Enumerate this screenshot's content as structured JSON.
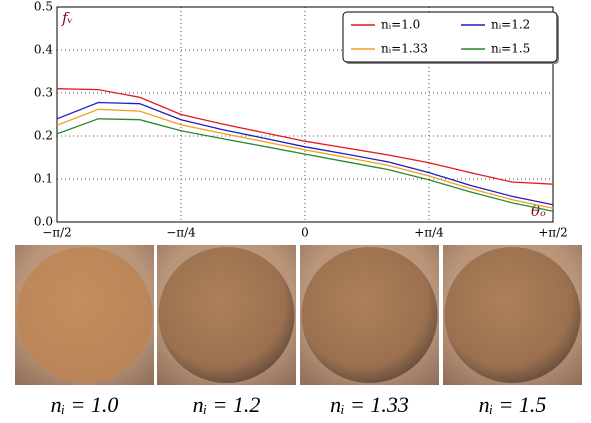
{
  "chart_data": {
    "type": "line",
    "y_label": "fᵥ",
    "x_label": "θₒ",
    "x": [
      -1.5708,
      -1.309,
      -1.0472,
      -0.7854,
      -0.5236,
      -0.2618,
      0,
      0.2618,
      0.5236,
      0.7854,
      1.0472,
      1.309,
      1.5708
    ],
    "series": [
      {
        "name": "nᵢ=1.0",
        "color": "#e41a1c",
        "values": [
          0.31,
          0.308,
          0.29,
          0.25,
          0.228,
          0.208,
          0.188,
          0.172,
          0.156,
          0.138,
          0.115,
          0.093,
          0.088
        ]
      },
      {
        "name": "nᵢ=1.2",
        "color": "#1f1fbf",
        "values": [
          0.24,
          0.278,
          0.275,
          0.238,
          0.215,
          0.195,
          0.175,
          0.158,
          0.14,
          0.115,
          0.085,
          0.06,
          0.04
        ]
      },
      {
        "name": "nᵢ=1.33",
        "color": "#f0a020",
        "values": [
          0.225,
          0.262,
          0.258,
          0.226,
          0.206,
          0.187,
          0.168,
          0.15,
          0.132,
          0.107,
          0.078,
          0.052,
          0.032
        ]
      },
      {
        "name": "nᵢ=1.5",
        "color": "#2a8a2a",
        "values": [
          0.205,
          0.24,
          0.238,
          0.212,
          0.194,
          0.176,
          0.158,
          0.14,
          0.122,
          0.098,
          0.07,
          0.045,
          0.025
        ]
      }
    ],
    "xlim": [
      -1.5708,
      1.5708
    ],
    "xticks": [
      {
        "value": -1.5708,
        "label": "−π/2"
      },
      {
        "value": -0.7854,
        "label": "−π/4"
      },
      0,
      {
        "value": 0.7854,
        "label": "+π/4"
      },
      {
        "value": 1.5708,
        "label": "+π/2"
      }
    ],
    "ylim": [
      0,
      0.5
    ],
    "yticks": [
      {
        "value": 0,
        "label": "0.0"
      },
      0.1,
      0.2,
      0.3,
      0.4,
      0.5
    ],
    "grid": true,
    "legend": "upper right"
  },
  "images": [
    {
      "caption": "nᵢ = 1.0"
    },
    {
      "caption": "nᵢ = 1.2"
    },
    {
      "caption": "nᵢ = 1.33"
    },
    {
      "caption": "nᵢ = 1.5"
    }
  ]
}
